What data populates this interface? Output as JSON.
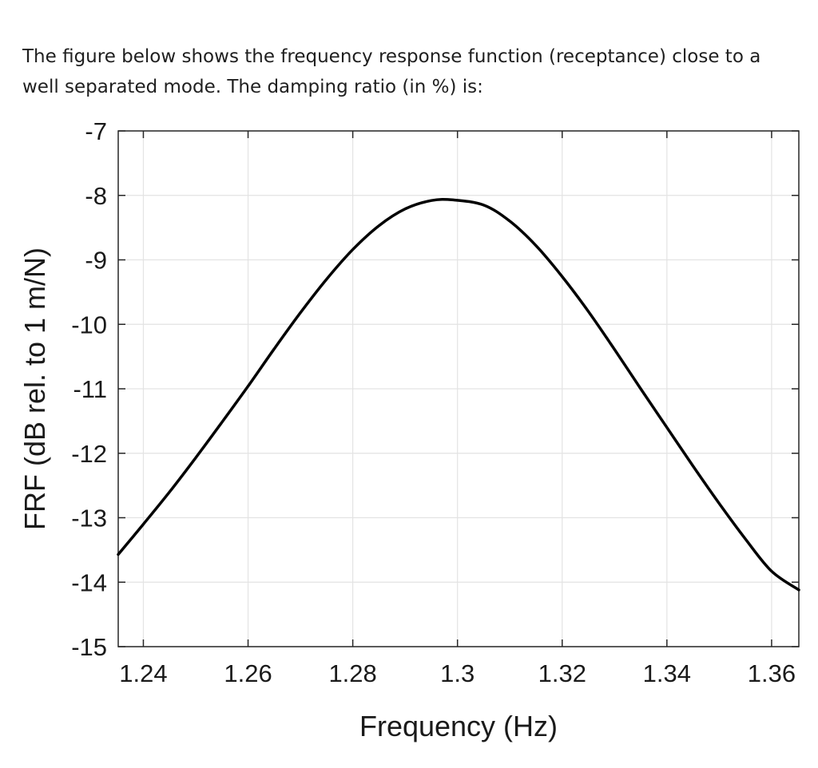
{
  "question": {
    "line1": "The figure below shows the frequency response function (receptance) close to a",
    "line2": "well separated mode. The damping ratio (in %) is:"
  },
  "chart_data": {
    "type": "line",
    "title": "",
    "xlabel": "Frequency (Hz)",
    "ylabel": "FRF (dB rel. to 1 m/N)",
    "xlim": [
      1.2352,
      1.3652
    ],
    "ylim": [
      -15,
      -7
    ],
    "xticks": [
      1.24,
      1.26,
      1.28,
      1.3,
      1.32,
      1.34,
      1.36
    ],
    "xtick_labels": [
      "1.24",
      "1.26",
      "1.28",
      "1.3",
      "1.32",
      "1.34",
      "1.36"
    ],
    "yticks": [
      -7,
      -8,
      -9,
      -10,
      -11,
      -12,
      -13,
      -14,
      -15
    ],
    "ytick_labels": [
      "-7",
      "-8",
      "-9",
      "-10",
      "-11",
      "-12",
      "-13",
      "-14",
      "-15"
    ],
    "grid": true,
    "line_color": "#000000",
    "series": [
      {
        "x": [
          1.2352,
          1.24,
          1.245,
          1.25,
          1.255,
          1.26,
          1.265,
          1.27,
          1.275,
          1.28,
          1.285,
          1.29,
          1.295,
          1.2992,
          1.305,
          1.31,
          1.315,
          1.32,
          1.325,
          1.33,
          1.335,
          1.34,
          1.345,
          1.35,
          1.355,
          1.36,
          1.3652
        ],
        "y": [
          -13.57,
          -13.1,
          -12.6,
          -12.07,
          -11.52,
          -10.96,
          -10.38,
          -9.82,
          -9.3,
          -8.84,
          -8.47,
          -8.21,
          -8.08,
          -8.07,
          -8.15,
          -8.4,
          -8.78,
          -9.26,
          -9.8,
          -10.39,
          -11.0,
          -11.6,
          -12.2,
          -12.78,
          -13.33,
          -13.83,
          -14.12
        ]
      }
    ]
  }
}
